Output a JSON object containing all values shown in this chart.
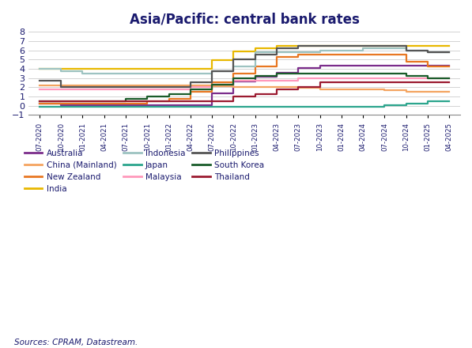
{
  "title": "Asia/Pacific: central bank rates",
  "source": "Sources: CPRAM, Datastream.",
  "ylim": [
    -1,
    8
  ],
  "yticks": [
    -1,
    0,
    1,
    2,
    3,
    4,
    5,
    6,
    7,
    8
  ],
  "x_labels": [
    "07-2020",
    "10-2020",
    "01-2021",
    "04-2021",
    "07-2021",
    "10-2021",
    "01-2022",
    "04-2022",
    "07-2022",
    "10-2022",
    "01-2023",
    "04-2023",
    "07-2023",
    "10-2023",
    "01-2024",
    "04-2024",
    "07-2024",
    "10-2024",
    "01-2025",
    "04-2025"
  ],
  "series": [
    {
      "name": "Australia",
      "color": "#7B2D8B",
      "data": [
        0.25,
        0.1,
        0.1,
        0.1,
        0.1,
        0.1,
        0.1,
        0.1,
        1.35,
        2.6,
        3.1,
        3.6,
        4.1,
        4.35,
        4.35,
        4.35,
        4.35,
        4.35,
        4.35,
        4.35
      ]
    },
    {
      "name": "China (Mainland)",
      "color": "#F4A460",
      "data": [
        2.2,
        2.2,
        2.2,
        2.2,
        2.2,
        2.2,
        2.2,
        2.2,
        2.1,
        2.0,
        2.0,
        2.0,
        1.9,
        1.8,
        1.8,
        1.8,
        1.7,
        1.5,
        1.5,
        1.5
      ]
    },
    {
      "name": "New Zealand",
      "color": "#E87722",
      "data": [
        0.25,
        0.25,
        0.25,
        0.25,
        0.25,
        0.5,
        0.75,
        1.5,
        2.5,
        3.5,
        4.25,
        5.25,
        5.5,
        5.5,
        5.5,
        5.5,
        5.5,
        4.75,
        4.25,
        4.25
      ]
    },
    {
      "name": "India",
      "color": "#E8B800",
      "data": [
        4.0,
        4.0,
        4.0,
        4.0,
        4.0,
        4.0,
        4.0,
        4.0,
        4.9,
        5.9,
        6.25,
        6.5,
        6.5,
        6.5,
        6.5,
        6.5,
        6.5,
        6.5,
        6.5,
        6.5
      ]
    },
    {
      "name": "Indonesia",
      "color": "#9DC3C1",
      "data": [
        4.0,
        3.75,
        3.5,
        3.5,
        3.5,
        3.5,
        3.5,
        3.5,
        3.75,
        4.25,
        5.75,
        5.75,
        5.75,
        6.0,
        6.0,
        6.25,
        6.25,
        6.0,
        5.75,
        5.75
      ]
    },
    {
      "name": "Japan",
      "color": "#2CA58D",
      "data": [
        -0.1,
        -0.1,
        -0.1,
        -0.1,
        -0.1,
        -0.1,
        -0.1,
        -0.1,
        -0.1,
        -0.1,
        -0.1,
        -0.1,
        -0.1,
        -0.1,
        -0.1,
        -0.1,
        0.1,
        0.25,
        0.5,
        0.5
      ]
    },
    {
      "name": "Malaysia",
      "color": "#FF99BB",
      "data": [
        1.75,
        1.75,
        1.75,
        1.75,
        1.75,
        1.75,
        1.75,
        2.0,
        2.25,
        2.75,
        2.75,
        2.75,
        3.0,
        3.0,
        3.0,
        3.0,
        3.0,
        3.0,
        3.0,
        3.0
      ]
    },
    {
      "name": "Philippines",
      "color": "#555555",
      "data": [
        2.75,
        2.0,
        2.0,
        2.0,
        2.0,
        2.0,
        2.0,
        2.5,
        3.75,
        5.0,
        5.5,
        6.25,
        6.5,
        6.5,
        6.5,
        6.5,
        6.5,
        6.0,
        5.75,
        5.75
      ]
    },
    {
      "name": "South Korea",
      "color": "#1A5C2A",
      "data": [
        0.5,
        0.5,
        0.5,
        0.5,
        0.75,
        1.0,
        1.25,
        1.75,
        2.25,
        3.0,
        3.25,
        3.5,
        3.5,
        3.5,
        3.5,
        3.5,
        3.5,
        3.25,
        3.0,
        3.0
      ]
    },
    {
      "name": "Thailand",
      "color": "#9B1B30",
      "data": [
        0.5,
        0.5,
        0.5,
        0.5,
        0.5,
        0.5,
        0.5,
        0.5,
        0.5,
        1.0,
        1.25,
        1.75,
        2.0,
        2.5,
        2.5,
        2.5,
        2.5,
        2.5,
        2.5,
        2.5
      ]
    }
  ],
  "legend_ncol": 3,
  "legend_order": [
    "Australia",
    "China (Mainland)",
    "New Zealand",
    "India",
    "Indonesia",
    "Japan",
    "Malaysia",
    "Philippines",
    "South Korea",
    "Thailand"
  ]
}
